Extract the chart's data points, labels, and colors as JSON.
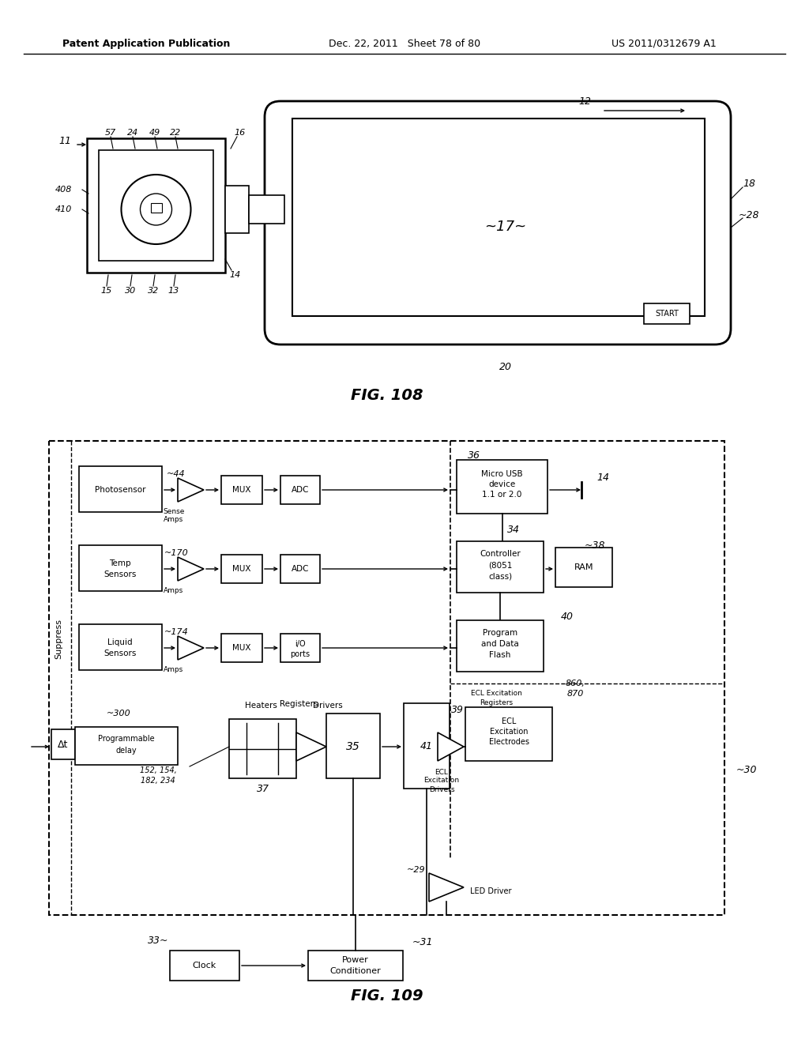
{
  "background_color": "#ffffff",
  "header_left": "Patent Application Publication",
  "header_center": "Dec. 22, 2011   Sheet 78 of 80",
  "header_right": "US 2011/0312679 A1",
  "fig108_label": "FIG. 108",
  "fig109_label": "FIG. 109"
}
